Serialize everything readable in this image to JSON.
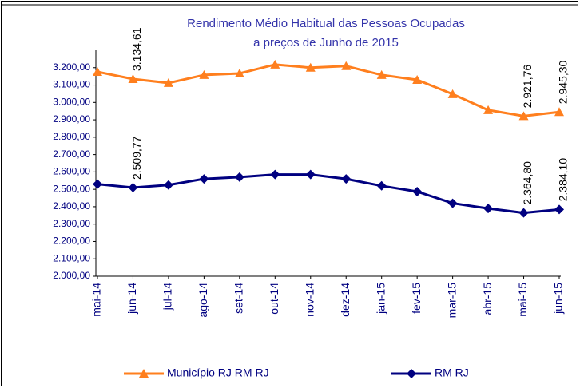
{
  "chart_data": {
    "type": "line",
    "title": [
      "Rendimento Médio Habitual das Pessoas Ocupadas",
      "a preços de Junho de 2015"
    ],
    "categories": [
      "mai-14",
      "jun-14",
      "jul-14",
      "ago-14",
      "set-14",
      "out-14",
      "nov-14",
      "dez-14",
      "jan-15",
      "fev-15",
      "mar-15",
      "abr-15",
      "mai-15",
      "jun-15"
    ],
    "series": [
      {
        "name": "Município RJ RM RJ",
        "color": "#ff7f1e",
        "marker": "triangle",
        "values": [
          3176,
          3134.61,
          3112,
          3158,
          3167,
          3218,
          3200,
          3209,
          3158,
          3130,
          3048,
          2956,
          2921.76,
          2945.3
        ],
        "value_labels": [
          null,
          "3.134,61",
          null,
          null,
          null,
          null,
          null,
          null,
          null,
          null,
          null,
          null,
          "2.921,76",
          "2.945,30"
        ]
      },
      {
        "name": "RM RJ",
        "color": "#000080",
        "marker": "diamond",
        "values": [
          2530,
          2509.77,
          2525,
          2560,
          2570,
          2585,
          2585,
          2560,
          2520,
          2487,
          2420,
          2390,
          2364.8,
          2384.1
        ],
        "value_labels": [
          null,
          "2.509,77",
          null,
          null,
          null,
          null,
          null,
          null,
          null,
          null,
          null,
          null,
          "2.364,80",
          "2.384,10"
        ]
      }
    ],
    "ylim": [
      2000,
      3300
    ],
    "yticks": [
      {
        "value": 2000,
        "label": "2.000,00"
      },
      {
        "value": 2100,
        "label": "2.100,00"
      },
      {
        "value": 2200,
        "label": "2.200,00"
      },
      {
        "value": 2300,
        "label": "2.300,00"
      },
      {
        "value": 2400,
        "label": "2.400,00"
      },
      {
        "value": 2500,
        "label": "2.500,00"
      },
      {
        "value": 2600,
        "label": "2.600,00"
      },
      {
        "value": 2700,
        "label": "2.700,00"
      },
      {
        "value": 2800,
        "label": "2.800,00"
      },
      {
        "value": 2900,
        "label": "2.900,00"
      },
      {
        "value": 3000,
        "label": "3.000,00"
      },
      {
        "value": 3100,
        "label": "3.100,00"
      },
      {
        "value": 3200,
        "label": "3.200,00"
      }
    ],
    "grid": false
  }
}
